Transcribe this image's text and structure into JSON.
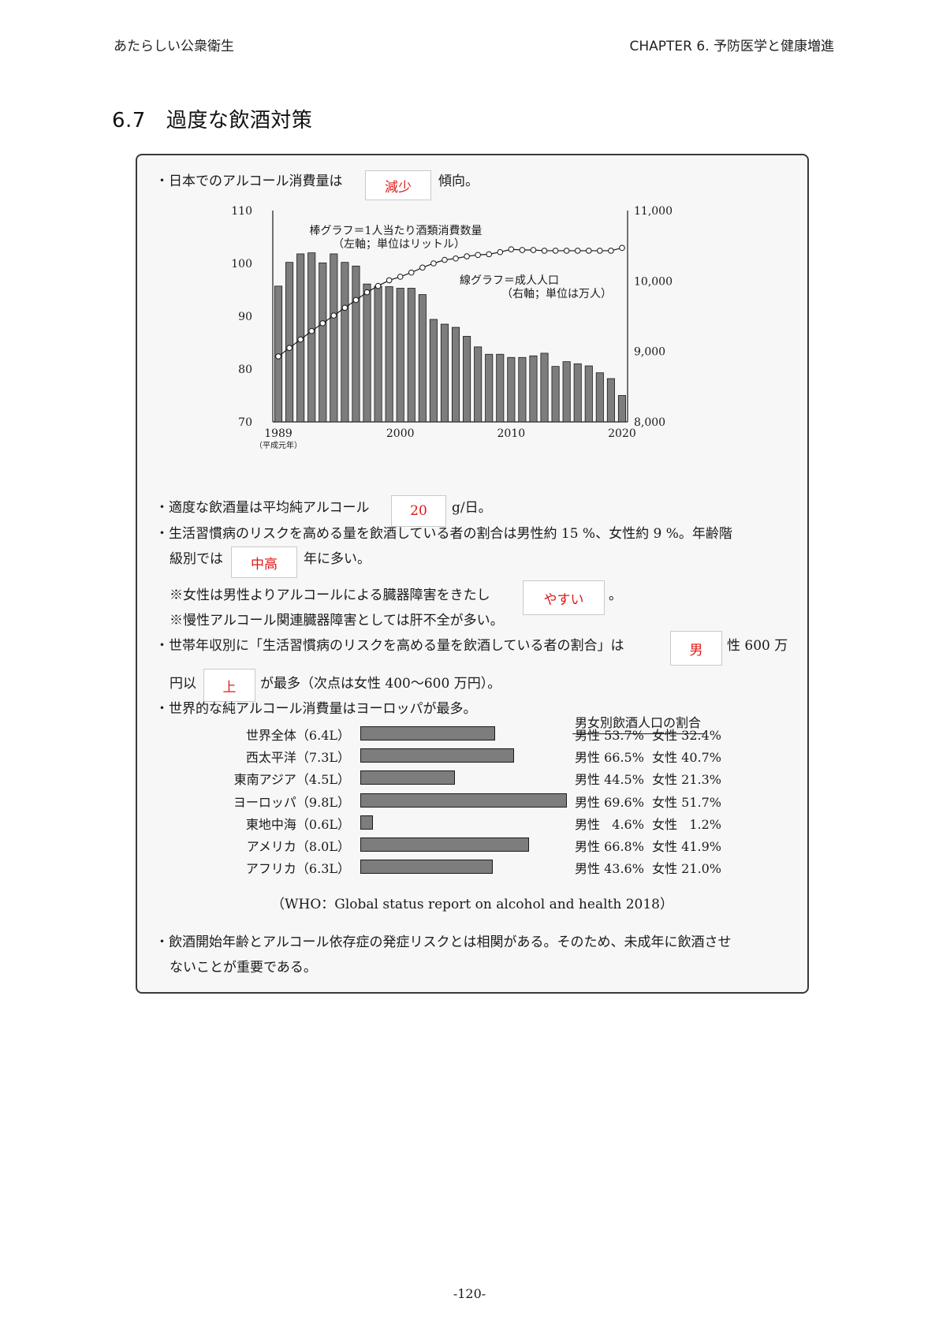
{
  "header": {
    "left": "あたらしい公衆衛生",
    "right": "CHAPTER 6.  予防医学と健康増進"
  },
  "section": {
    "number": "6.7",
    "title": "過度な飲酒対策"
  },
  "lines": {
    "l1_pre": "・日本でのアルコール消費量は",
    "l1_ans": "減少",
    "l1_post": "傾向。",
    "l2_pre": "・適度な飲酒量は平均純アルコール",
    "l2_ans": "20",
    "l2_post": "g/日。",
    "l3a": "・生活習慣病のリスクを高める量を飲酒している者の割合は男性約 15 %、女性約 9 %。年齢階",
    "l3b_pre": "級別では",
    "l3b_ans": "中高",
    "l3b_post": "年に多い。",
    "l4_pre": "※女性は男性よりアルコールによる臓器障害をきたし",
    "l4_ans": "やすい",
    "l4_post": "。",
    "l5": "※慢性アルコール関連臓器障害としては肝不全が多い。",
    "l6_pre": "・世帯年収別に「生活習慣病のリスクを高める量を飲酒している者の割合」は",
    "l6_ans": "男",
    "l6_post": "性 600 万",
    "l7_pre": "円以",
    "l7_ans": "上",
    "l7_post": "が最多（次点は女性 400〜600 万円）。",
    "l8": "・世界的な純アルコール消費量はヨーロッパが最多。",
    "l9a": "・飲酒開始年齢とアルコール依存症の発症リスクとは相関がある。そのため、未成年に飲酒させ",
    "l9b": "ないことが重要である。"
  },
  "chart_data": [
    {
      "type": "bar",
      "title": "",
      "annotations": {
        "bar": [
          "棒グラフ＝1人当たり酒類消費数量",
          "（左軸；単位はリットル）"
        ],
        "line": [
          "線グラフ＝成人人口",
          "（右軸；単位は万人）"
        ],
        "era": "（平成元年）"
      },
      "x": [
        1989,
        1990,
        1991,
        1992,
        1993,
        1994,
        1995,
        1996,
        1997,
        1998,
        1999,
        2000,
        2001,
        2002,
        2003,
        2004,
        2005,
        2006,
        2007,
        2008,
        2009,
        2010,
        2011,
        2012,
        2013,
        2014,
        2015,
        2016,
        2017,
        2018,
        2019,
        2020
      ],
      "x_tick_labels": [
        "1989",
        "2000",
        "2010",
        "2020"
      ],
      "ylim_left": [
        70,
        110
      ],
      "yticks_left": [
        "110",
        "100",
        "90",
        "80",
        "70"
      ],
      "ylim_right": [
        8000,
        11000
      ],
      "yticks_right": [
        "11,000",
        "10,000",
        "9,000",
        "8,000"
      ],
      "series": [
        {
          "name": "1人当たり酒類消費数量",
          "axis": "left",
          "kind": "bar",
          "values": [
            95.7,
            100.2,
            101.8,
            102.0,
            100.1,
            101.8,
            100.2,
            99.5,
            96.1,
            95.7,
            95.6,
            95.3,
            95.3,
            94.1,
            89.4,
            88.5,
            87.9,
            86.2,
            84.2,
            82.8,
            82.8,
            82.2,
            82.2,
            82.5,
            83.0,
            80.5,
            81.4,
            81.0,
            80.6,
            79.3,
            78.2,
            75.0
          ]
        },
        {
          "name": "成人人口",
          "axis": "right",
          "kind": "line",
          "values": [
            8930,
            9050,
            9170,
            9290,
            9400,
            9510,
            9620,
            9730,
            9840,
            9930,
            10010,
            10060,
            10120,
            10190,
            10250,
            10300,
            10320,
            10350,
            10370,
            10380,
            10410,
            10450,
            10440,
            10440,
            10430,
            10430,
            10430,
            10430,
            10430,
            10430,
            10430,
            10470
          ]
        }
      ]
    },
    {
      "type": "bar",
      "orientation": "horizontal",
      "title": "",
      "categories": [
        "世界全体（6.4L）",
        "西太平洋（7.3L）",
        "東南アジア（4.5L）",
        "ヨーロッパ（9.8L）",
        "東地中海（0.6L）",
        "アメリカ（8.0L）",
        "アフリカ（6.3L）"
      ],
      "values": [
        6.4,
        7.3,
        4.5,
        9.8,
        0.6,
        8.0,
        6.3
      ],
      "xlim": [
        0,
        9.8
      ],
      "side_table_title": "男女別飲酒人口の割合",
      "side_table": [
        "男性 53.7%  女性 32.4%",
        "男性 66.5%  女性 40.7%",
        "男性 44.5%  女性 21.3%",
        "男性 69.6%  女性 51.7%",
        "男性   4.6%  女性   1.2%",
        "男性 66.8%  女性 41.9%",
        "男性 43.6%  女性 21.0%"
      ],
      "source": "（WHO：Global status report on alcohol and health 2018）"
    }
  ],
  "footer": {
    "page": "-120-"
  }
}
